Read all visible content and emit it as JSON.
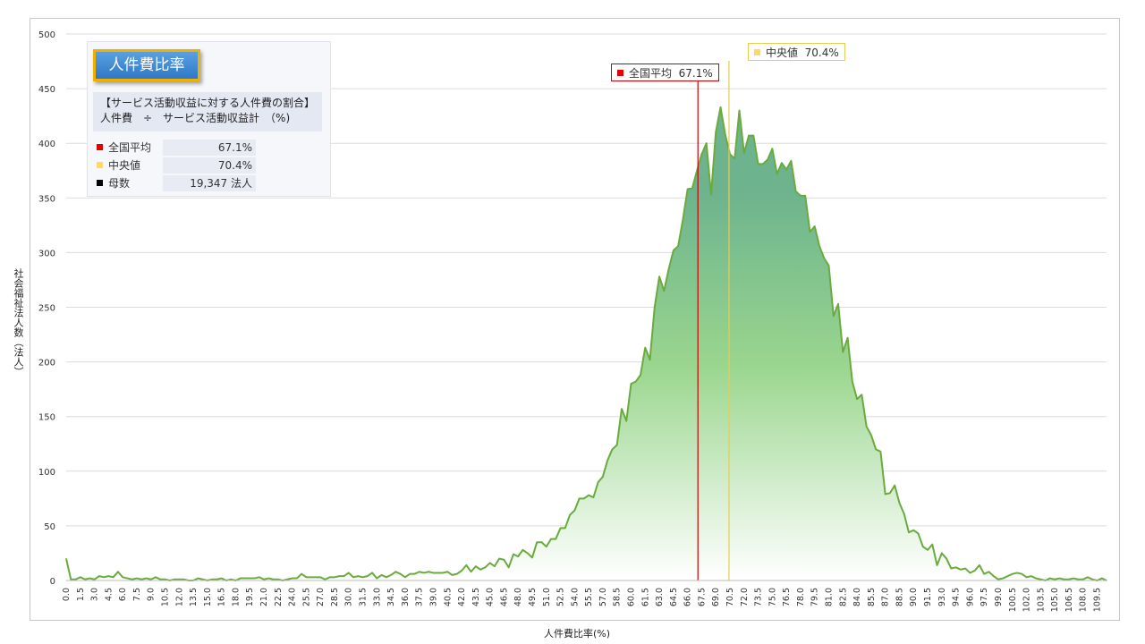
{
  "panel": {
    "title": "人件費比率",
    "desc_line1": "【サービス活動収益に対する人件費の割合】",
    "desc_line2": "人件費　÷　サービス活動収益計　（%)",
    "rows": [
      {
        "label": "全国平均",
        "value": "67.1%",
        "color": "#e00000"
      },
      {
        "label": "中央値",
        "value": "70.4%",
        "color": "#ffd966"
      },
      {
        "label": "母数",
        "value": "19,347 法人",
        "color": "#000000"
      }
    ]
  },
  "callouts": {
    "mean": {
      "label": "全国平均",
      "value": "67.1%",
      "x": 67.1,
      "color": "#cc0000"
    },
    "median": {
      "label": "中央値",
      "value": "70.4%",
      "x": 70.4,
      "color": "#e8cc55"
    }
  },
  "chart_data": {
    "type": "area",
    "xlabel": "人件費比率(%)",
    "ylabel": "社会福祉法人数（法人）",
    "ylim": [
      0,
      500
    ],
    "yticks": [
      0,
      50,
      100,
      150,
      200,
      250,
      300,
      350,
      400,
      450,
      500
    ],
    "x_start": 0.0,
    "x_step": 0.5,
    "x_tick_step": 1.5,
    "grid": true,
    "colors": {
      "line": "#6aab3e",
      "fill_top": "#6db38d",
      "fill_mid": "#9bd68f",
      "fill_bottom": "#ffffff"
    },
    "values": [
      20,
      1,
      1,
      3,
      1,
      2,
      1,
      4,
      3,
      4,
      3,
      8,
      3,
      2,
      1,
      2,
      1,
      2,
      1,
      3,
      1,
      1,
      0,
      1,
      1,
      1,
      0,
      0,
      2,
      1,
      0,
      1,
      1,
      2,
      0,
      1,
      0,
      2,
      2,
      2,
      2,
      3,
      1,
      2,
      1,
      1,
      0,
      1,
      2,
      2,
      6,
      3,
      3,
      3,
      3,
      1,
      3,
      3,
      4,
      4,
      7,
      3,
      4,
      3,
      4,
      7,
      2,
      5,
      3,
      5,
      8,
      6,
      3,
      6,
      6,
      8,
      7,
      8,
      7,
      7,
      7,
      8,
      5,
      6,
      9,
      14,
      8,
      13,
      10,
      12,
      16,
      13,
      20,
      19,
      12,
      24,
      22,
      28,
      25,
      21,
      35,
      35,
      31,
      38,
      38,
      48,
      48,
      60,
      64,
      75,
      75,
      78,
      76,
      90,
      95,
      110,
      120,
      124,
      157,
      146,
      180,
      182,
      188,
      213,
      202,
      250,
      278,
      265,
      285,
      302,
      306,
      330,
      358,
      359,
      375,
      390,
      400,
      353,
      410,
      433,
      408,
      390,
      386,
      430,
      391,
      407,
      407,
      381,
      381,
      385,
      395,
      372,
      382,
      376,
      384,
      356,
      352,
      352,
      319,
      324,
      306,
      295,
      288,
      242,
      253,
      209,
      222,
      182,
      166,
      170,
      141,
      133,
      120,
      118,
      79,
      80,
      87,
      71,
      61,
      44,
      46,
      43,
      31,
      28,
      33,
      14,
      25,
      20,
      11,
      12,
      10,
      11,
      7,
      9,
      14,
      6,
      8,
      4,
      1,
      2,
      4,
      6,
      7,
      6,
      3,
      4,
      2,
      1,
      0,
      2,
      1,
      2,
      1,
      1,
      2,
      1,
      1,
      3,
      1,
      0,
      2,
      0
    ]
  }
}
